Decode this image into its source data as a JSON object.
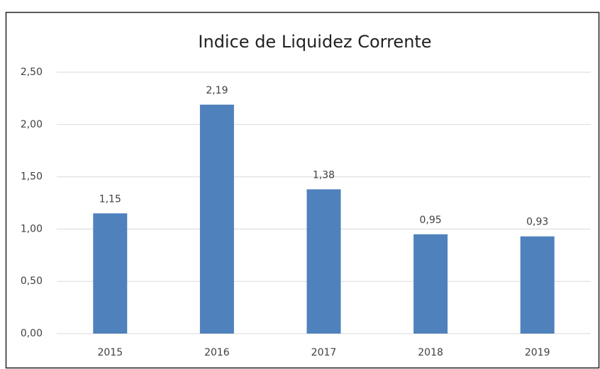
{
  "chart_data": {
    "type": "bar",
    "title": "Indice de Liquidez Corrente",
    "categories": [
      "2015",
      "2016",
      "2017",
      "2018",
      "2019"
    ],
    "values": [
      1.15,
      2.19,
      1.38,
      0.95,
      0.93
    ],
    "value_labels": [
      "1,15",
      "2,19",
      "1,38",
      "0,95",
      "0,93"
    ],
    "color": "#4f81bd",
    "ylim": [
      0,
      2.5
    ],
    "yticks": [
      {
        "value": 0,
        "label": "0,00"
      },
      {
        "value": 0.5,
        "label": "0,50"
      },
      {
        "value": 1,
        "label": "1,00"
      },
      {
        "value": 1.5,
        "label": "1,50"
      },
      {
        "value": 2,
        "label": "2,00"
      },
      {
        "value": 2.5,
        "label": "2,50"
      }
    ],
    "grid": true
  }
}
